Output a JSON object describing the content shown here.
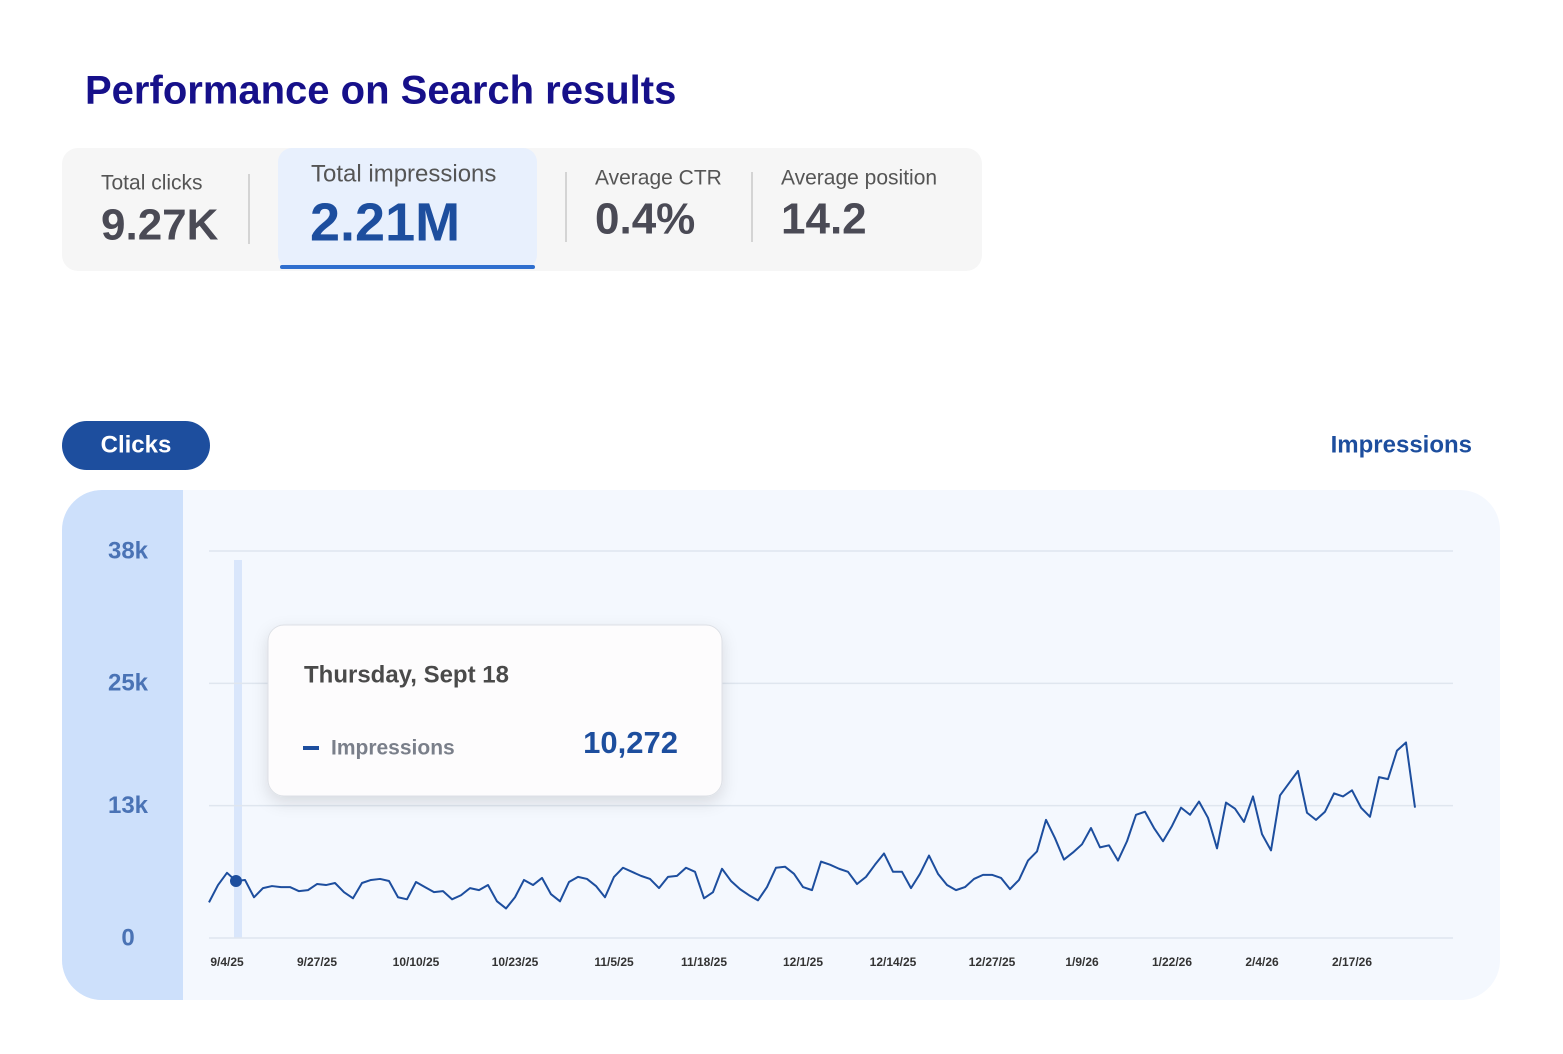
{
  "header": {
    "title": "Performance on Search results"
  },
  "metrics": [
    {
      "label": "Total clicks",
      "value": "9.27K"
    },
    {
      "label": "Total impressions",
      "value": "2.21M"
    },
    {
      "label": "Average CTR",
      "value": "0.4%"
    },
    {
      "label": "Average position",
      "value": "14.2"
    }
  ],
  "toggles": [
    "Clicks",
    "Impressions"
  ],
  "chart_data": {
    "type": "line",
    "grid": true,
    "ylim": [
      0,
      38000
    ],
    "yticks": [
      0,
      {
        "value": 13000,
        "label": "13k"
      },
      {
        "value": 25000,
        "label": "25k"
      },
      {
        "value": 38000,
        "label": "38k"
      }
    ],
    "categories": [
      null,
      null,
      "9/4/25",
      null,
      null,
      null,
      null,
      null,
      null,
      null,
      null,
      null,
      "9/27/25",
      null,
      null,
      null,
      null,
      null,
      null,
      null,
      null,
      null,
      null,
      "10/10/25",
      null,
      null,
      null,
      null,
      null,
      null,
      null,
      null,
      null,
      null,
      "10/23/25",
      null,
      null,
      null,
      null,
      null,
      null,
      null,
      null,
      null,
      null,
      "11/5/25",
      null,
      null,
      null,
      null,
      null,
      null,
      null,
      null,
      null,
      "11/18/25",
      null,
      null,
      null,
      null,
      null,
      null,
      null,
      null,
      null,
      null,
      "12/1/25",
      null,
      null,
      null,
      null,
      null,
      null,
      null,
      null,
      null,
      "12/14/25",
      null,
      null,
      null,
      null,
      null,
      null,
      null,
      null,
      null,
      null,
      "12/27/25",
      null,
      null,
      null,
      null,
      null,
      null,
      null,
      null,
      null,
      "1/9/26",
      null,
      null,
      null,
      null,
      null,
      null,
      null,
      null,
      null,
      "1/22/26",
      null,
      null,
      null,
      null,
      null,
      null,
      null,
      null,
      null,
      "2/4/26",
      null,
      null,
      null,
      null,
      null,
      null,
      null,
      null,
      null,
      "2/17/26",
      null,
      null,
      null,
      null,
      null,
      null,
      null
    ],
    "series": [
      {
        "name": "Impressions",
        "color": "#1d4e9e",
        "values": [
          3500,
          5200,
          6400,
          5600,
          5700,
          4000,
          4900,
          5100,
          5000,
          5000,
          4600,
          4700,
          5300,
          5200,
          5400,
          4500,
          3900,
          5400,
          5700,
          5800,
          5600,
          4000,
          3800,
          5500,
          5000,
          4500,
          4600,
          3800,
          4200,
          4900,
          4700,
          5200,
          3600,
          2900,
          4000,
          5700,
          5200,
          5900,
          4300,
          3600,
          5500,
          6000,
          5800,
          5100,
          4000,
          6000,
          6900,
          6500,
          6100,
          5800,
          4900,
          6000,
          6100,
          6900,
          6500,
          3900,
          4500,
          6800,
          5600,
          4800,
          4200,
          3700,
          5000,
          6900,
          7000,
          6300,
          5000,
          4700,
          7500,
          7200,
          6800,
          6500,
          5300,
          6000,
          7200,
          8300,
          6500,
          6500,
          4900,
          6300,
          8100,
          6300,
          5200,
          4700,
          5000,
          5800,
          6200,
          6200,
          5900,
          4800,
          5700,
          7600,
          8500,
          11600,
          9800,
          7700,
          8400,
          9200,
          10800,
          8900,
          9100,
          7600,
          9500,
          12100,
          12400,
          10800,
          9500,
          11000,
          12800,
          12100,
          13400,
          11800,
          8800,
          13300,
          12700,
          11400,
          13900,
          10200,
          8600,
          14000,
          15200,
          16400,
          12300,
          11600,
          12400,
          14200,
          13900,
          14500,
          12800,
          11900,
          15800,
          15600,
          18400,
          19200,
          12800
        ]
      }
    ]
  },
  "tooltip": {
    "date": "Thursday, Sept 18",
    "value": "10,272"
  }
}
